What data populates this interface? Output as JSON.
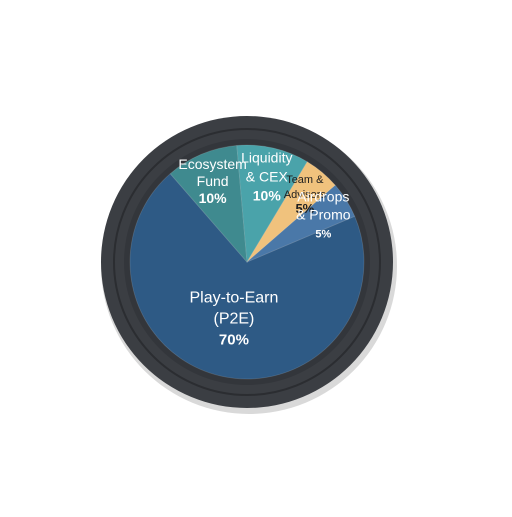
{
  "chart_data": {
    "type": "pie",
    "title": "",
    "slices": [
      {
        "label_lines": [
          "Play-to-Earn",
          "(P2E)"
        ],
        "value": 70,
        "value_label": "70%",
        "color": "#2e5a85"
      },
      {
        "label_lines": [
          "Ecosystem",
          "Fund"
        ],
        "value": 10,
        "value_label": "10%",
        "color": "#3f8a8f"
      },
      {
        "label_lines": [
          "Liquidity",
          "& CEX"
        ],
        "value": 10,
        "value_label": "10%",
        "color": "#4aa3aa"
      },
      {
        "label_lines": [
          "Team &",
          "Advisors"
        ],
        "value": 5,
        "value_label": "5%",
        "color": "#f0c27d"
      },
      {
        "label_lines": [
          "Airdrops",
          "& Promo"
        ],
        "value": 5,
        "value_label": "5%",
        "color": "#4a78a8"
      }
    ],
    "ring_color": "#3b3e43",
    "label_color": "#ffffff",
    "label_color_light_slice": "#1f1f1f"
  }
}
